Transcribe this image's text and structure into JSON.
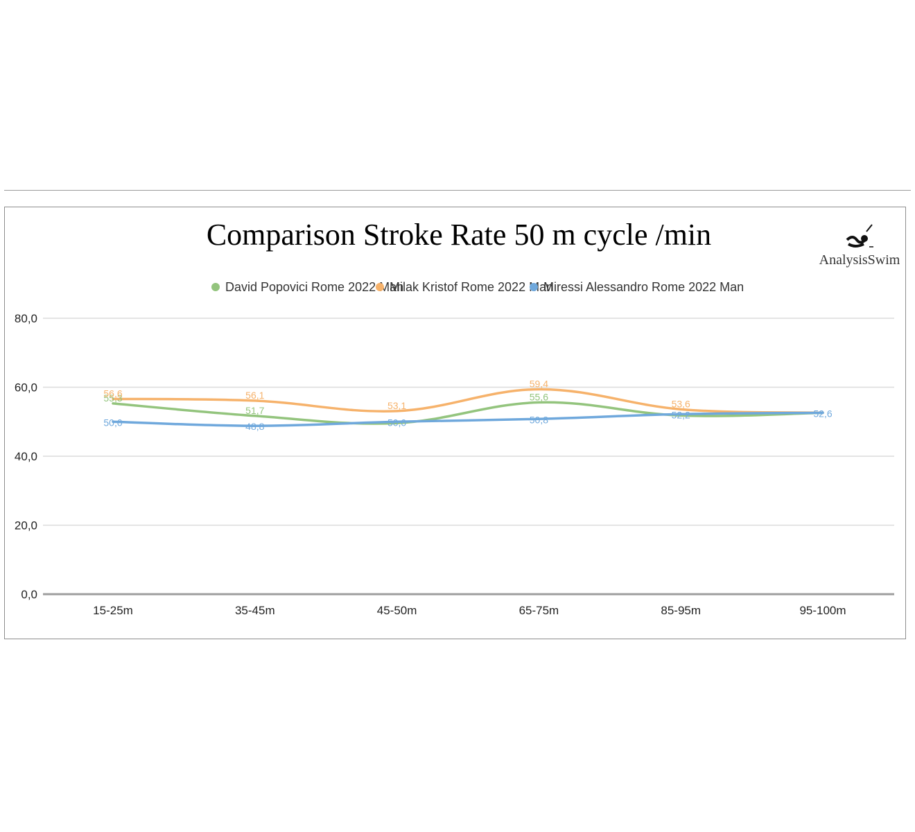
{
  "chart_data": {
    "type": "line",
    "title": "Comparison Stroke Rate 50 m cycle /min",
    "categories": [
      "15-25m",
      "35-45m",
      "45-50m",
      "65-75m",
      "85-95m",
      "95-100m"
    ],
    "y_tick_labels": [
      "0,0",
      "20,0",
      "40,0",
      "60,0",
      "80,0"
    ],
    "ylim": [
      0,
      80
    ],
    "grid": true,
    "legend_position": "top",
    "series": [
      {
        "name": "David Popovici Rome 2022 Man",
        "color": "#93c47d",
        "values": [
          55.3,
          51.7,
          49.6,
          55.6,
          51.8,
          52.6
        ],
        "labels": [
          "55,3",
          "51,7",
          "",
          "55,6",
          "",
          ""
        ]
      },
      {
        "name": "Milak Kristof Rome 2022 Man",
        "color": "#f6b26b",
        "values": [
          56.6,
          56.1,
          53.1,
          59.4,
          53.6,
          52.6
        ],
        "labels": [
          "56,6",
          "56,1",
          "53,1",
          "59,4",
          "53,6",
          ""
        ]
      },
      {
        "name": "Miressi Alessandro Rome 2022 Man",
        "color": "#6fa8dc",
        "values": [
          50.0,
          48.8,
          50.0,
          50.8,
          52.2,
          52.6
        ],
        "labels": [
          "50,0",
          "48,8",
          "50,0",
          "50,8",
          "52,2",
          "52,6"
        ]
      }
    ]
  },
  "logo": {
    "text": "AnalysisSwim",
    "icon": "swimmer-icon"
  }
}
